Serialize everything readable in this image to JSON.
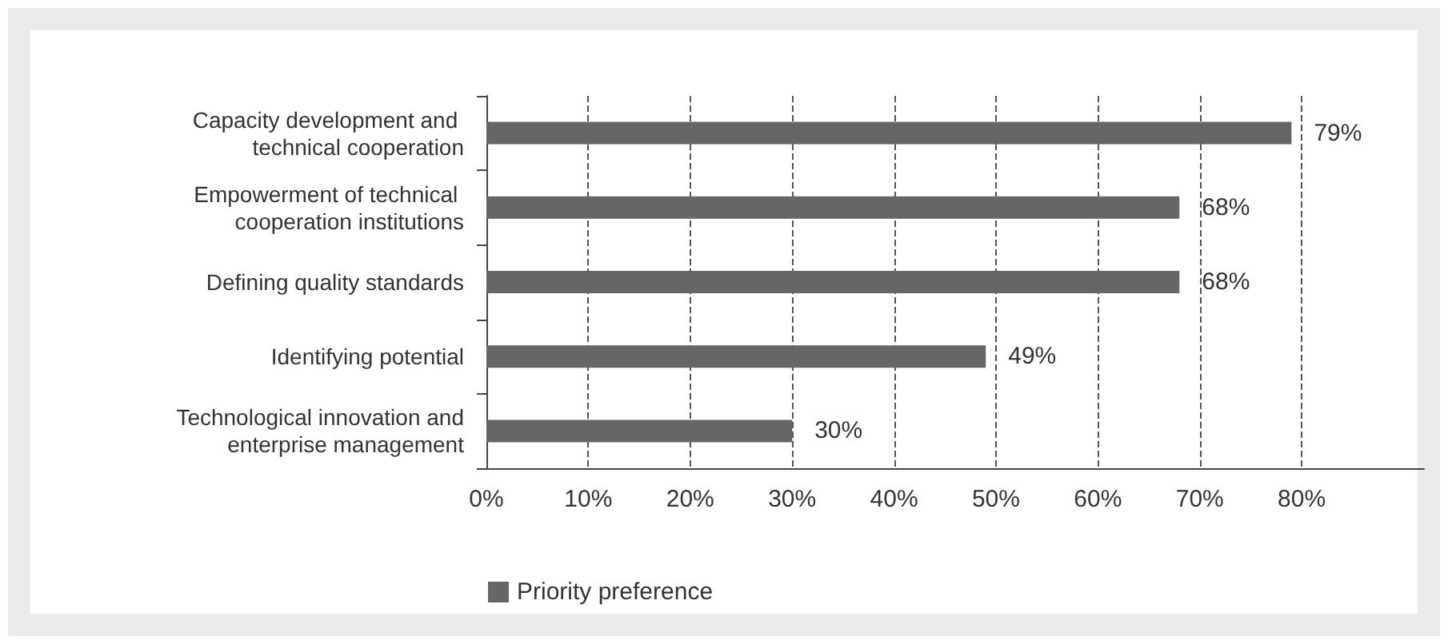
{
  "chart_data": {
    "type": "bar",
    "orientation": "horizontal",
    "categories": [
      "Capacity development and technical cooperation",
      "Empowerment of technical cooperation institutions",
      "Defining quality standards",
      "Identifying potential",
      "Technological innovation and enterprise management"
    ],
    "series": [
      {
        "name": "Priority preference",
        "color": "#666666",
        "values": [
          79,
          68,
          68,
          49,
          30
        ],
        "value_labels": [
          "79%",
          "68%",
          "68%",
          "49%",
          "30%"
        ]
      }
    ],
    "xlim": [
      0,
      92
    ],
    "xticks": [
      {
        "value": 0,
        "label": "0%"
      },
      {
        "value": 10,
        "label": "10%"
      },
      {
        "value": 20,
        "label": "20%"
      },
      {
        "value": 30,
        "label": "30%"
      },
      {
        "value": 40,
        "label": "40%"
      },
      {
        "value": 50,
        "label": "50%"
      },
      {
        "value": 60,
        "label": "60%"
      },
      {
        "value": 70,
        "label": "70%"
      },
      {
        "value": 80,
        "label": "80%"
      }
    ],
    "grid": "x",
    "legend": "bottom left"
  }
}
